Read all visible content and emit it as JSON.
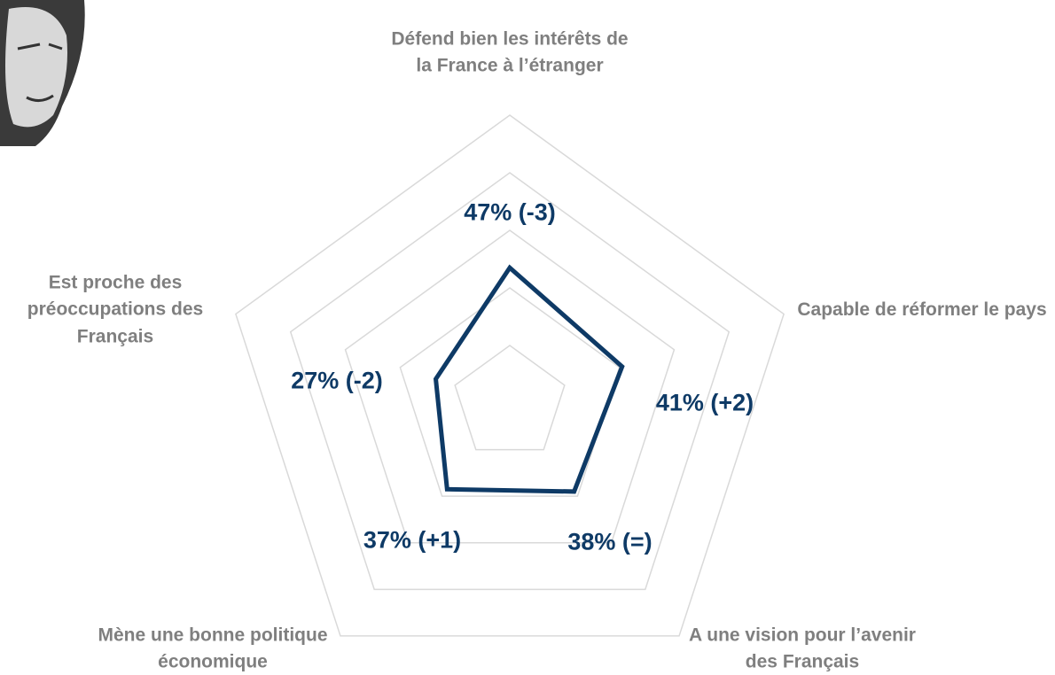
{
  "chart_data": {
    "type": "radar",
    "categories": [
      "Défend bien les intérêts de la France à l’étranger",
      "Capable de réformer le pays",
      "A une vision pour l’avenir des Français",
      "Mène une bonne politique économique",
      "Est proche des préoccupations des Français"
    ],
    "values": [
      47,
      41,
      38,
      37,
      27
    ],
    "value_labels": [
      "47% (-3)",
      "41% (+2)",
      "38% (=)",
      "37% (+1)",
      "27% (-2)"
    ],
    "color": "#0e3a66",
    "ylim": [
      0,
      100
    ],
    "yticks": [
      0,
      20,
      40,
      60,
      80,
      100
    ],
    "grid": true
  }
}
